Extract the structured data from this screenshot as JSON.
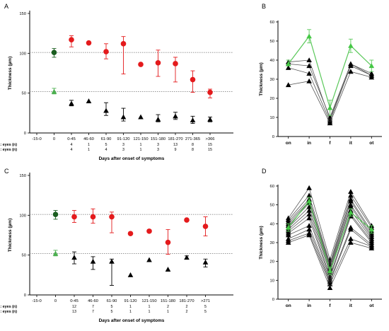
{
  "chart_data": [
    {
      "panel": "A",
      "type": "scatter",
      "ylabel": "Thickness (µm)",
      "xlabel": "Days after onset of symptoms",
      "ylim": [
        0,
        150
      ],
      "yticks": [
        0,
        50,
        100,
        150
      ],
      "categories": [
        "-15-0",
        "0",
        "0-45",
        "46-60",
        "61-90",
        "91-120",
        "121-150",
        "151-180",
        "181-270",
        "271-365",
        ">366"
      ],
      "reference_lines": [
        101,
        52
      ],
      "series": [
        {
          "color": "#e41a1c",
          "marker": "circle",
          "points": [
            {
              "x": "0-45",
              "y": 117,
              "err": [
                108,
                122
              ]
            },
            {
              "x": "46-60",
              "y": 113
            },
            {
              "x": "61-90",
              "y": 102,
              "err": [
                93,
                112
              ]
            },
            {
              "x": "91-120",
              "y": 112,
              "err": [
                74,
                121
              ]
            },
            {
              "x": "121-150",
              "y": 86
            },
            {
              "x": "151-180",
              "y": 88,
              "err": [
                71,
                104
              ]
            },
            {
              "x": "181-270",
              "y": 87,
              "err": [
                64,
                95
              ]
            },
            {
              "x": "271-365",
              "y": 67,
              "err": [
                51,
                78
              ]
            },
            {
              "x": ">366",
              "y": 51,
              "err": [
                44,
                55
              ]
            }
          ]
        },
        {
          "color": "#000000",
          "marker": "triangle",
          "points": [
            {
              "x": "0-45",
              "y": 37,
              "err": [
                34,
                41
              ]
            },
            {
              "x": "46-60",
              "y": 40
            },
            {
              "x": "61-90",
              "y": 28,
              "err": [
                22,
                38
              ]
            },
            {
              "x": "91-120",
              "y": 20,
              "err": [
                15,
                31
              ]
            },
            {
              "x": "121-150",
              "y": 20
            },
            {
              "x": "151-180",
              "y": 17,
              "err": [
                14,
                23
              ]
            },
            {
              "x": "181-270",
              "y": 21,
              "err": [
                17,
                26
              ]
            },
            {
              "x": "271-365",
              "y": 16,
              "err": [
                12,
                21
              ]
            },
            {
              "x": ">366",
              "y": 17,
              "err": [
                14,
                20
              ]
            }
          ]
        },
        {
          "color": "#1b5e20",
          "marker": "circle",
          "points": [
            {
              "x": "0",
              "y": 101,
              "err": [
                95,
                106
              ]
            }
          ]
        },
        {
          "color": "#4caf50",
          "marker": "triangle",
          "points": [
            {
              "x": "0",
              "y": 52,
              "err": [
                49,
                56
              ]
            }
          ]
        }
      ],
      "eyes_rows": [
        {
          "label": "RNFL: eyes (n)",
          "counts": [
            "",
            "",
            "4",
            "1",
            "5",
            "3",
            "1",
            "3",
            "13",
            "8",
            "15"
          ]
        },
        {
          "label": "GCLTI: eyes (n)",
          "counts": [
            "",
            "",
            "4",
            "1",
            "4",
            "3",
            "1",
            "3",
            "9",
            "8",
            "15"
          ]
        }
      ]
    },
    {
      "panel": "B",
      "type": "line",
      "ylabel": "Thickness (µm)",
      "categories": [
        "on",
        "in",
        "f",
        "it",
        "ot"
      ],
      "ylim": [
        0,
        60
      ],
      "yticks": [
        0,
        10,
        20,
        30,
        40,
        50,
        60
      ],
      "subjects": [
        [
          39,
          40,
          9,
          38,
          33
        ],
        [
          38,
          37,
          10,
          38,
          32
        ],
        [
          36,
          33,
          8,
          37,
          32
        ],
        [
          27,
          29,
          7,
          34,
          31
        ]
      ],
      "mean": {
        "values": [
          38,
          52.5,
          15,
          47.5,
          37
        ],
        "err": [
          [
            37,
            40
          ],
          [
            49,
            56
          ],
          [
            11,
            19
          ],
          [
            44,
            51
          ],
          [
            34,
            40
          ]
        ]
      }
    },
    {
      "panel": "C",
      "type": "scatter",
      "ylabel": "Thickness (µm)",
      "xlabel": "Days after onset of symptoms",
      "ylim": [
        0,
        150
      ],
      "yticks": [
        0,
        50,
        100,
        150
      ],
      "categories": [
        "-15-0",
        "0",
        "0-45",
        "46-60",
        "61-90",
        "91-120",
        "121-150",
        "151-180",
        "181-270",
        ">271"
      ],
      "reference_lines": [
        101,
        52
      ],
      "series": [
        {
          "color": "#e41a1c",
          "marker": "circle",
          "points": [
            {
              "x": "0-45",
              "y": 98,
              "err": [
                91,
                106
              ]
            },
            {
              "x": "46-60",
              "y": 98,
              "err": [
                90,
                108
              ]
            },
            {
              "x": "61-90",
              "y": 98,
              "err": [
                78,
                104
              ]
            },
            {
              "x": "91-120",
              "y": 77
            },
            {
              "x": "121-150",
              "y": 80
            },
            {
              "x": "151-180",
              "y": 66,
              "err": [
                51,
                82
              ]
            },
            {
              "x": "181-270",
              "y": 94
            },
            {
              "x": ">271",
              "y": 86,
              "err": [
                74,
                98
              ]
            }
          ]
        },
        {
          "color": "#000000",
          "marker": "triangle",
          "points": [
            {
              "x": "0-45",
              "y": 47,
              "err": [
                39,
                54
              ]
            },
            {
              "x": "46-60",
              "y": 42,
              "err": [
                32,
                48
              ]
            },
            {
              "x": "61-90",
              "y": 42,
              "err": [
                12,
                45
              ]
            },
            {
              "x": "91-120",
              "y": 25
            },
            {
              "x": "121-150",
              "y": 44
            },
            {
              "x": "151-180",
              "y": 32
            },
            {
              "x": "181-270",
              "y": 47,
              "err": [
                45,
                49
              ]
            },
            {
              "x": ">271",
              "y": 41,
              "err": [
                35,
                45
              ]
            }
          ]
        },
        {
          "color": "#1b5e20",
          "marker": "circle",
          "points": [
            {
              "x": "0",
              "y": 101,
              "err": [
                95,
                106
              ]
            }
          ]
        },
        {
          "color": "#4caf50",
          "marker": "triangle",
          "points": [
            {
              "x": "0",
              "y": 52,
              "err": [
                49,
                56
              ]
            }
          ]
        }
      ],
      "eyes_rows": [
        {
          "label": "RNFL: eyes (n)",
          "counts": [
            "",
            "",
            "12",
            "7",
            "5",
            "1",
            "1",
            "2",
            "2",
            "5"
          ]
        },
        {
          "label": "GCLTI: eyes (n)",
          "counts": [
            "",
            "",
            "13",
            "7",
            "5",
            "1",
            "1",
            "1",
            "2",
            "5"
          ]
        }
      ]
    },
    {
      "panel": "D",
      "type": "line",
      "ylabel": "Thickness (µm)",
      "categories": [
        "on",
        "in",
        "f",
        "it",
        "ot"
      ],
      "ylim": [
        0,
        60
      ],
      "yticks": [
        0,
        10,
        20,
        30,
        40,
        50,
        60
      ],
      "subjects": [
        [
          43,
          59,
          21,
          57,
          39
        ],
        [
          42,
          55,
          19,
          55,
          38
        ],
        [
          41,
          53,
          18,
          53,
          36
        ],
        [
          40,
          52,
          17,
          52,
          35
        ],
        [
          39,
          51,
          16,
          50,
          34
        ],
        [
          38,
          49,
          15,
          49,
          33
        ],
        [
          37,
          47,
          14,
          47,
          32
        ],
        [
          36,
          45,
          12,
          45,
          31
        ],
        [
          35,
          43,
          11,
          44,
          30
        ],
        [
          34,
          39,
          10,
          38,
          29
        ],
        [
          32,
          37,
          9,
          37,
          28
        ],
        [
          31,
          35,
          8,
          32,
          28
        ],
        [
          30,
          34,
          6,
          30,
          27
        ]
      ],
      "mean": {
        "values": [
          38,
          52,
          15,
          46,
          37
        ],
        "err": [
          [
            36,
            40
          ],
          [
            50,
            54
          ],
          [
            13,
            17
          ],
          [
            44,
            48
          ],
          [
            35,
            39
          ]
        ]
      }
    }
  ]
}
